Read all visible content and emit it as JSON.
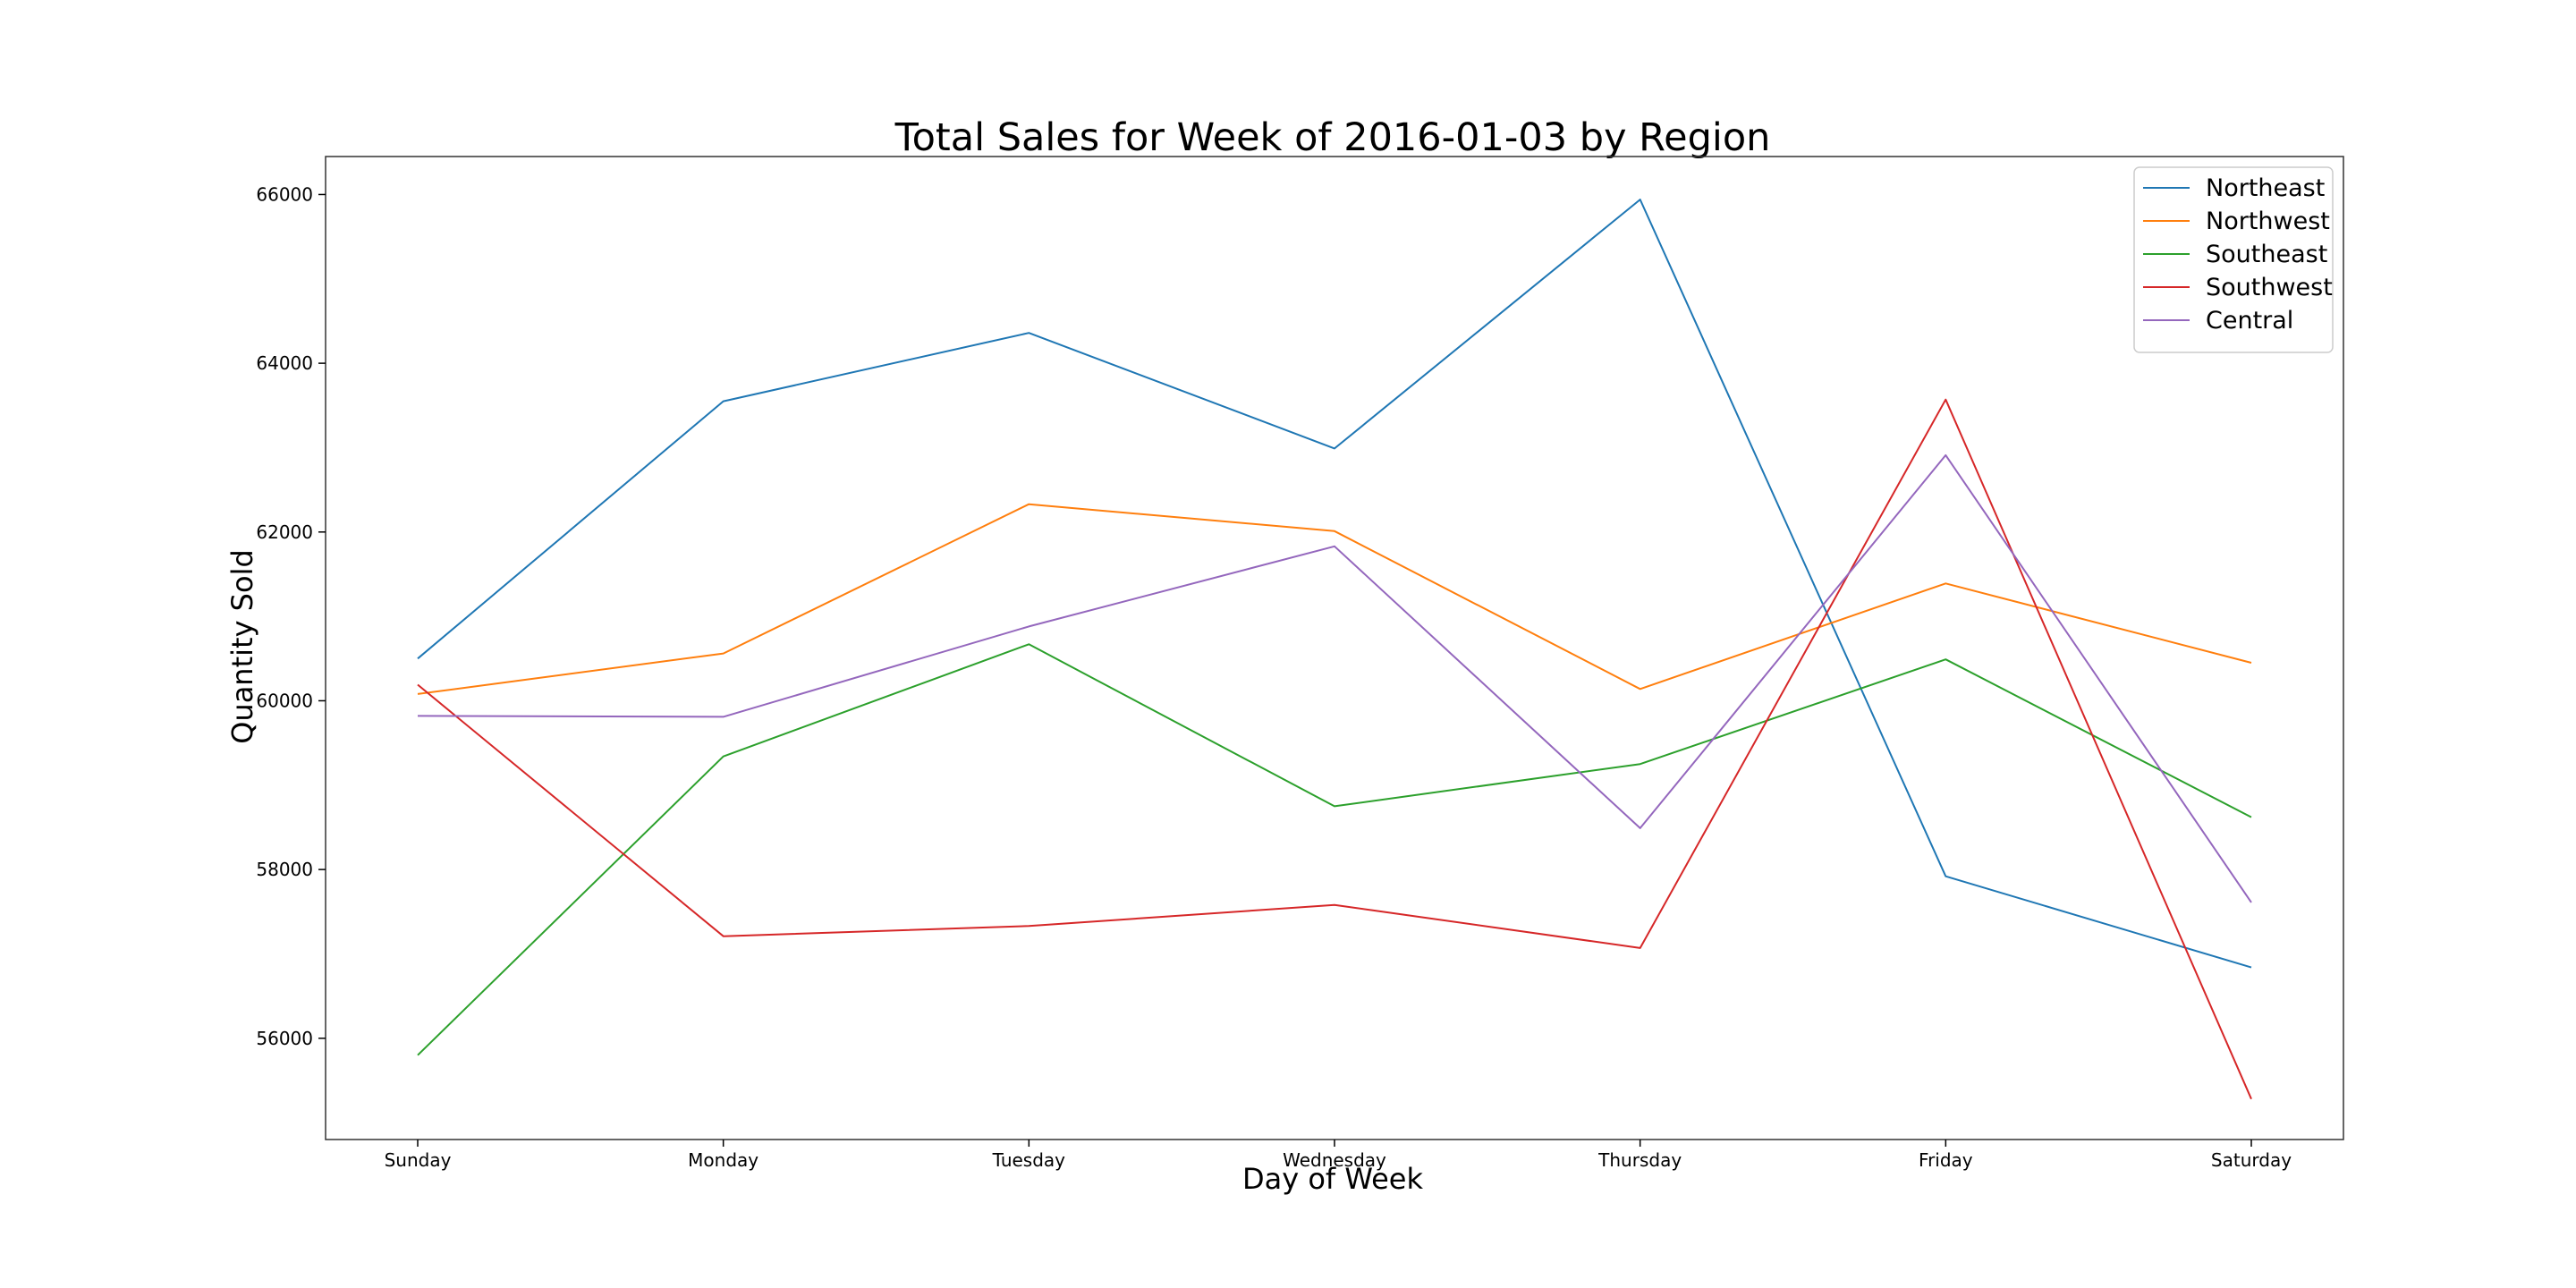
{
  "chart_data": {
    "type": "line",
    "title": "Total Sales for Week of 2016-01-03 by Region",
    "xlabel": "Day of Week",
    "ylabel": "Quantity Sold",
    "categories": [
      "Sunday",
      "Monday",
      "Tuesday",
      "Wednesday",
      "Thursday",
      "Friday",
      "Saturday"
    ],
    "ylim": [
      54800,
      66450
    ],
    "yticks": [
      56000,
      58000,
      60000,
      62000,
      64000,
      66000
    ],
    "grid": false,
    "legend_position": "top-right",
    "series": [
      {
        "name": "Northeast",
        "color": "#1f77b4",
        "values": [
          60500,
          63550,
          64360,
          62990,
          65940,
          57920,
          56840
        ]
      },
      {
        "name": "Northwest",
        "color": "#ff7f0e",
        "values": [
          60080,
          60560,
          62330,
          62010,
          60140,
          61390,
          60450
        ]
      },
      {
        "name": "Southeast",
        "color": "#2ca02c",
        "values": [
          55800,
          59340,
          60670,
          58750,
          59250,
          60490,
          58620
        ]
      },
      {
        "name": "Southwest",
        "color": "#d62728",
        "values": [
          60190,
          57210,
          57330,
          57580,
          57070,
          63570,
          55280
        ]
      },
      {
        "name": "Central",
        "color": "#9467bd",
        "values": [
          59820,
          59810,
          60880,
          61830,
          58490,
          62910,
          57610
        ]
      }
    ]
  }
}
